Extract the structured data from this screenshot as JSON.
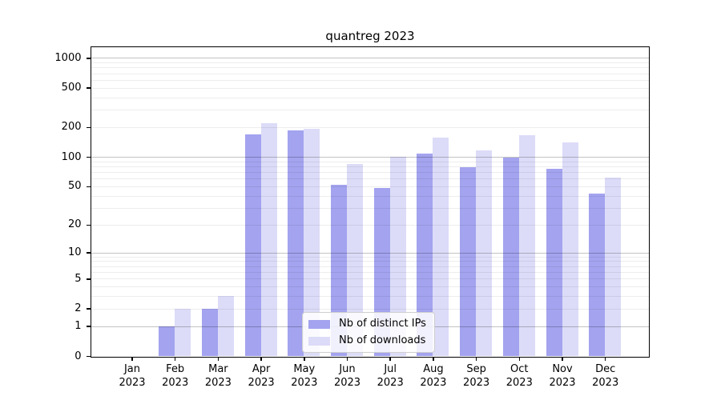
{
  "title": "quantreg 2023",
  "chart_data": {
    "type": "bar",
    "title": "quantreg 2023",
    "categories": [
      "Jan 2023",
      "Feb 2023",
      "Mar 2023",
      "Apr 2023",
      "May 2023",
      "Jun 2023",
      "Jul 2023",
      "Aug 2023",
      "Sep 2023",
      "Oct 2023",
      "Nov 2023",
      "Dec 2023"
    ],
    "series": [
      {
        "name": "Nb of distinct IPs",
        "color": "#a3a3ef",
        "values": [
          0,
          1,
          2,
          170,
          186,
          52,
          48,
          108,
          78,
          98,
          76,
          42
        ]
      },
      {
        "name": "Nb of downloads",
        "color": "#dcdcf8",
        "values": [
          0,
          2,
          3,
          221,
          193,
          85,
          100,
          156,
          116,
          165,
          140,
          61
        ]
      }
    ],
    "xlabel": "",
    "ylabel": "",
    "y_ticks": [
      0,
      1,
      2,
      5,
      10,
      20,
      50,
      100,
      200,
      500,
      1000
    ],
    "y_scale": "log10(1+x)",
    "ylim": [
      0,
      1300
    ],
    "grid": {
      "horizontal_major_at": [
        1,
        10,
        100,
        1000
      ],
      "horizontal_minor": "log decade subdivisions",
      "vertical": false
    },
    "legend_position": "lower center inside plot"
  },
  "colors": {
    "bar_distinct_ips": "#a3a3ef",
    "bar_downloads": "#dcdcf8",
    "grid_major": "#bdbdbd",
    "grid_minor": "#ededed",
    "axis_frame": "#000000",
    "legend_border": "#cfcfcf",
    "background": "#ffffff"
  }
}
